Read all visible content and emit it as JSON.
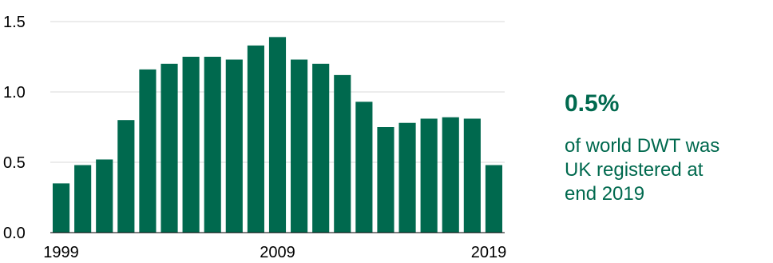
{
  "colors": {
    "bar": "#00694e",
    "accent_text": "#00694e",
    "gridline": "#d9d9d9",
    "axis": "#000000"
  },
  "chart_data": {
    "type": "bar",
    "categories": [
      "1999",
      "2000",
      "2001",
      "2002",
      "2003",
      "2004",
      "2005",
      "2006",
      "2007",
      "2008",
      "2009",
      "2010",
      "2011",
      "2012",
      "2013",
      "2014",
      "2015",
      "2016",
      "2017",
      "2018",
      "2019"
    ],
    "values": [
      0.35,
      0.48,
      0.52,
      0.8,
      1.16,
      1.2,
      1.25,
      1.25,
      1.23,
      1.33,
      1.39,
      1.23,
      1.2,
      1.12,
      0.93,
      0.75,
      0.78,
      0.81,
      0.82,
      0.81,
      0.48
    ],
    "x_tick_labels": [
      "1999",
      "2009",
      "2019"
    ],
    "x_tick_categories": [
      "1999",
      "2009",
      "2019"
    ],
    "y_ticks": [
      "0.0",
      "0.5",
      "1.0",
      "1.5"
    ],
    "ylim": [
      0,
      1.5
    ],
    "grid": true,
    "title": "",
    "xlabel": "",
    "ylabel": ""
  },
  "callout": {
    "stat": "0.5%",
    "line1": "of world DWT was",
    "line2": "UK registered at",
    "line3": "end 2019"
  }
}
